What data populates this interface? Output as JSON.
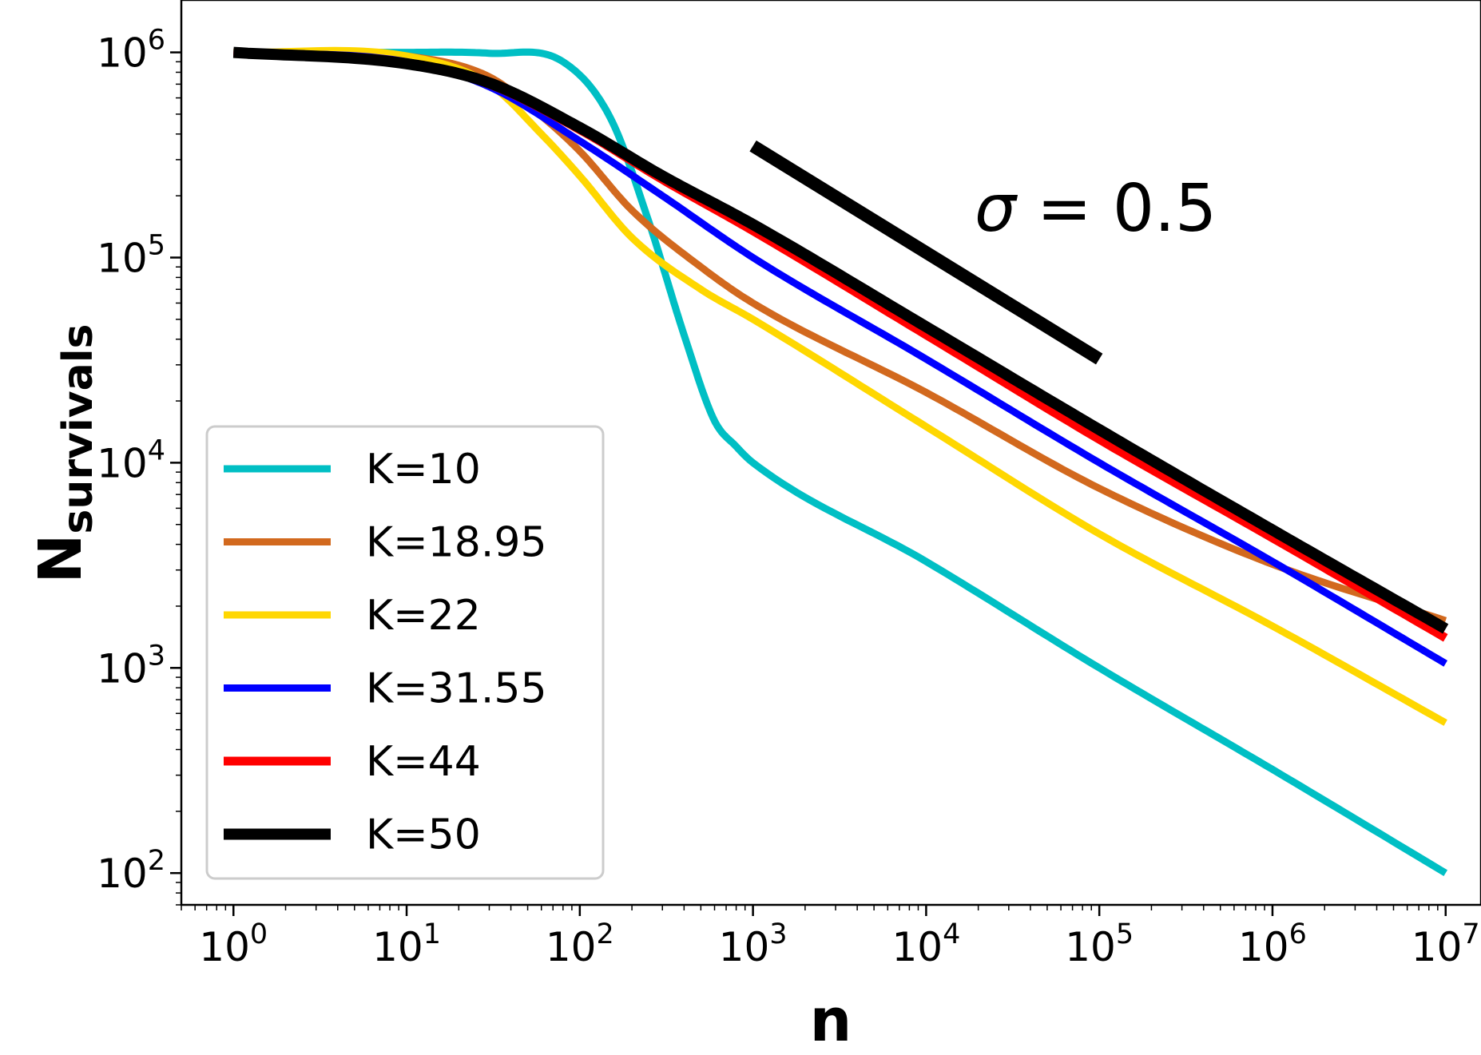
{
  "chart_data": {
    "type": "line",
    "xscale": "log",
    "yscale": "log",
    "xlabel": "n",
    "ylabel": {
      "main": "N",
      "sub": "survivals"
    },
    "xlim": [
      0.5,
      16000000.0
    ],
    "ylim": [
      70,
      1800000.0
    ],
    "xticks": [
      1,
      10,
      100,
      1000,
      10000,
      100000,
      1000000,
      10000000
    ],
    "xtick_labels": [
      {
        "base": "10",
        "exp": "0"
      },
      {
        "base": "10",
        "exp": "1"
      },
      {
        "base": "10",
        "exp": "2"
      },
      {
        "base": "10",
        "exp": "3"
      },
      {
        "base": "10",
        "exp": "4"
      },
      {
        "base": "10",
        "exp": "5"
      },
      {
        "base": "10",
        "exp": "6"
      },
      {
        "base": "10",
        "exp": "7"
      }
    ],
    "yticks": [
      100,
      1000,
      10000,
      100000,
      1000000
    ],
    "ytick_labels": [
      {
        "base": "10",
        "exp": "2"
      },
      {
        "base": "10",
        "exp": "3"
      },
      {
        "base": "10",
        "exp": "4"
      },
      {
        "base": "10",
        "exp": "5"
      },
      {
        "base": "10",
        "exp": "6"
      }
    ],
    "legend_position": "lower-left",
    "annotation": {
      "symbol": "σ",
      "text": " = 0.5"
    },
    "reference_line": {
      "x": [
        1000,
        100000
      ],
      "y": [
        350000,
        32000
      ],
      "color": "#000000"
    },
    "series": [
      {
        "name": "K=10",
        "color": "#00BFC4",
        "x": [
          1,
          10,
          30,
          80,
          150,
          250,
          400,
          600,
          800,
          1000,
          10000,
          100000,
          1000000,
          10000000
        ],
        "y": [
          1000000,
          1000000,
          990000,
          900000,
          480000,
          150000,
          42000,
          16000,
          12000,
          10000,
          3300,
          1000,
          320,
          100
        ]
      },
      {
        "name": "K=18.95",
        "color": "#D2691E",
        "x": [
          1,
          10,
          30,
          60,
          100,
          200,
          500,
          1000,
          10000,
          100000,
          1000000,
          10000000
        ],
        "y": [
          1000000,
          960000,
          760000,
          490000,
          330000,
          170000,
          90000,
          60000,
          22000,
          7500,
          3200,
          1700
        ]
      },
      {
        "name": "K=22",
        "color": "#FFD700",
        "x": [
          1,
          10,
          30,
          60,
          100,
          200,
          500,
          1000,
          10000,
          100000,
          1000000,
          10000000
        ],
        "y": [
          1000000,
          960000,
          700000,
          400000,
          250000,
          125000,
          70000,
          50000,
          15000,
          4500,
          1600,
          540
        ]
      },
      {
        "name": "K=31.55",
        "color": "#0000FF",
        "x": [
          1,
          10,
          30,
          100,
          300,
          1000,
          10000,
          100000,
          1000000,
          10000000
        ],
        "y": [
          1000000,
          900000,
          680000,
          370000,
          200000,
          100000,
          32000,
          10000,
          3300,
          1050
        ]
      },
      {
        "name": "K=44",
        "color": "#FF0000",
        "x": [
          1,
          10,
          30,
          100,
          300,
          1000,
          10000,
          100000,
          1000000,
          10000000
        ],
        "y": [
          1000000,
          890000,
          700000,
          420000,
          240000,
          135000,
          42000,
          13000,
          4300,
          1400
        ]
      },
      {
        "name": "K=50",
        "color": "#000000",
        "x": [
          1,
          10,
          30,
          100,
          300,
          1000,
          10000,
          100000,
          1000000,
          10000000
        ],
        "y": [
          1000000,
          880000,
          710000,
          430000,
          250000,
          145000,
          46000,
          14500,
          4700,
          1550
        ]
      }
    ]
  }
}
